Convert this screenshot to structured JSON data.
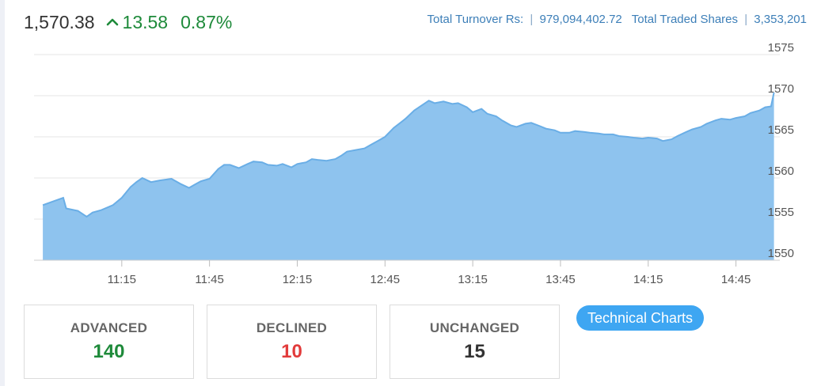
{
  "header": {
    "index_value": "1,570.38",
    "change": "13.58",
    "change_pct": "0.87%",
    "change_color": "#1e8a3a",
    "change_icon": "chevron-up-icon"
  },
  "stats": {
    "turnover_label": "Total Turnover Rs:",
    "turnover_value": "979,094,402.72",
    "shares_label": "Total Traded Shares",
    "shares_value": "3,353,201",
    "separator": "|"
  },
  "chart_data": {
    "type": "area",
    "xlabel": "",
    "ylabel": "",
    "ylim": [
      1550,
      1575
    ],
    "y_ticks": [
      1550,
      1555,
      1560,
      1565,
      1570,
      1575
    ],
    "x_ticks": [
      "11:15",
      "11:45",
      "12:15",
      "12:45",
      "13:15",
      "13:45",
      "14:15",
      "14:45"
    ],
    "x_range": [
      "10:45",
      "15:00"
    ],
    "grid": true,
    "fill_color": "#8ec3ee",
    "line_color": "#6aaee6",
    "series": [
      {
        "x": [
          "10:48",
          "10:55",
          "10:56",
          "11:00",
          "11:03",
          "11:05",
          "11:08",
          "11:12",
          "11:15",
          "11:18",
          "11:20",
          "11:22",
          "11:25",
          "11:28",
          "11:32",
          "11:35",
          "11:38",
          "11:40",
          "11:42",
          "11:45",
          "11:48",
          "11:50",
          "11:52",
          "11:55",
          "11:58",
          "12:00",
          "12:03",
          "12:05",
          "12:08",
          "12:10",
          "12:13",
          "12:15",
          "12:18",
          "12:20",
          "12:22",
          "12:25",
          "12:28",
          "12:30",
          "12:32",
          "12:35",
          "12:38",
          "12:40",
          "12:43",
          "12:45",
          "12:48",
          "12:52",
          "12:55",
          "13:00",
          "13:02",
          "13:05",
          "13:08",
          "13:10",
          "13:13",
          "13:15",
          "13:18",
          "13:20",
          "13:23",
          "13:25",
          "13:28",
          "13:30",
          "13:33",
          "13:35",
          "13:38",
          "13:40",
          "13:43",
          "13:45",
          "13:48",
          "13:50",
          "13:53",
          "13:55",
          "13:58",
          "14:00",
          "14:03",
          "14:05",
          "14:08",
          "14:10",
          "14:13",
          "14:15",
          "14:18",
          "14:20",
          "14:23",
          "14:25",
          "14:28",
          "14:30",
          "14:33",
          "14:35",
          "14:38",
          "14:40",
          "14:43",
          "14:45",
          "14:48",
          "14:50",
          "14:53",
          "14:55",
          "14:57",
          "14:58"
        ],
        "values": [
          1556.7,
          1557.6,
          1556.3,
          1556.0,
          1555.3,
          1555.8,
          1556.1,
          1556.7,
          1557.6,
          1558.9,
          1559.5,
          1560.0,
          1559.5,
          1559.7,
          1559.9,
          1559.3,
          1558.8,
          1559.2,
          1559.6,
          1559.9,
          1561.1,
          1561.6,
          1561.6,
          1561.2,
          1561.7,
          1562.0,
          1561.9,
          1561.6,
          1561.5,
          1561.7,
          1561.3,
          1561.7,
          1561.9,
          1562.3,
          1562.2,
          1562.1,
          1562.3,
          1562.7,
          1563.2,
          1563.4,
          1563.6,
          1564.0,
          1564.6,
          1565.0,
          1566.1,
          1567.2,
          1568.2,
          1569.4,
          1569.1,
          1569.3,
          1569.0,
          1569.1,
          1568.6,
          1568.0,
          1568.4,
          1567.8,
          1567.5,
          1567.0,
          1566.4,
          1566.2,
          1566.6,
          1566.7,
          1566.3,
          1566.0,
          1565.8,
          1565.5,
          1565.5,
          1565.7,
          1565.6,
          1565.5,
          1565.4,
          1565.3,
          1565.3,
          1565.1,
          1565.0,
          1564.9,
          1564.8,
          1564.9,
          1564.8,
          1564.5,
          1564.7,
          1565.1,
          1565.6,
          1565.9,
          1566.2,
          1566.6,
          1567.0,
          1567.2,
          1567.1,
          1567.3,
          1567.5,
          1567.9,
          1568.2,
          1568.6,
          1568.7,
          1570.38
        ]
      }
    ]
  },
  "cards": [
    {
      "label": "ADVANCED",
      "value": "140",
      "color": "#1e8a3a"
    },
    {
      "label": "DECLINED",
      "value": "10",
      "color": "#e23b3b"
    },
    {
      "label": "UNCHANGED",
      "value": "15",
      "color": "#333333"
    }
  ],
  "buttons": {
    "technical_charts": "Technical Charts"
  }
}
